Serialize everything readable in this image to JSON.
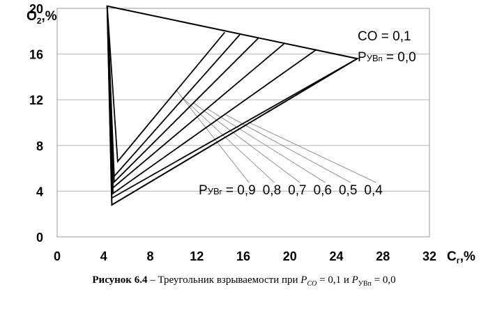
{
  "chart_data": {
    "type": "line",
    "ylabel_main": "O",
    "ylabel_sub": "2",
    "ylabel_unit": ",%",
    "xlabel_main": "C",
    "xlabel_sub": "г",
    "xlabel_unit": ",%",
    "xlim": [
      0,
      32
    ],
    "ylim": [
      0,
      20
    ],
    "x_ticks": [
      "0",
      "4",
      "8",
      "12",
      "16",
      "20",
      "24",
      "28",
      "32"
    ],
    "y_ticks": [
      "0",
      "4",
      "8",
      "12",
      "16",
      "20"
    ],
    "grid": "horizontal",
    "outer_triangle": [
      [
        4.3,
        20.2
      ],
      [
        25.8,
        15.6
      ],
      [
        4.7,
        2.8
      ]
    ],
    "inner_lines": [
      {
        "label": "0,9",
        "top": [
          14.4,
          17.9
        ],
        "bottom": [
          5.2,
          6.6
        ]
      },
      {
        "label": "0,8",
        "top": [
          15.7,
          17.7
        ],
        "bottom": [
          4.9,
          5.3
        ]
      },
      {
        "label": "0,7",
        "top": [
          17.3,
          17.4
        ],
        "bottom": [
          4.9,
          4.8
        ]
      },
      {
        "label": "0,6",
        "top": [
          19.5,
          16.9
        ],
        "bottom": [
          4.8,
          4.3
        ]
      },
      {
        "label": "0,5",
        "top": [
          22.3,
          16.4
        ],
        "bottom": [
          4.8,
          3.8
        ]
      },
      {
        "label": "0,4",
        "top": [
          25.8,
          15.6
        ],
        "bottom": [
          4.7,
          3.4
        ]
      }
    ],
    "legend": {
      "co_text": "CO  = 0,1",
      "pyv_prefix": "P",
      "pyv_mid": "УВ",
      "pyv_sub": "п",
      "pyv_value": " = 0,0"
    },
    "ratio_label": {
      "prefix": "P",
      "mid": "УВ",
      "sub": "г",
      "equals": " = ",
      "values": [
        "0,9",
        "0,8",
        "0,7",
        "0,6",
        "0,5",
        "0,4"
      ]
    }
  },
  "caption": {
    "figure": "Рисунок 6.4",
    "text": " – Треугольник взрываемости при ",
    "p1": "P",
    "p1_sub": "CO",
    "eq1": " = 0,1 и ",
    "p2": "P",
    "p2_sub": "УВп",
    "eq2": " = 0,0"
  }
}
